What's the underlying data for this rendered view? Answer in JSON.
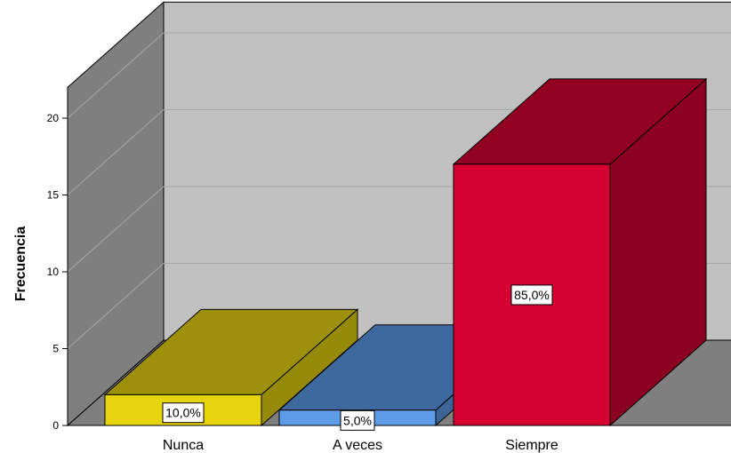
{
  "chart_data": {
    "type": "bar",
    "ylabel": "Frecuencia",
    "xlabel": "",
    "categories": [
      "Nunca",
      "A veces",
      "Siempre"
    ],
    "values": [
      2,
      1,
      17
    ],
    "data_labels": [
      "10,0%",
      "5,0%",
      "85,0%"
    ],
    "colors": [
      "#E8D40E",
      "#5B9BE8",
      "#D70032"
    ],
    "ylim": [
      0,
      22
    ],
    "yticks": [
      0,
      5,
      10,
      15,
      20
    ],
    "grid": true,
    "style": "3d",
    "legend": "none"
  }
}
